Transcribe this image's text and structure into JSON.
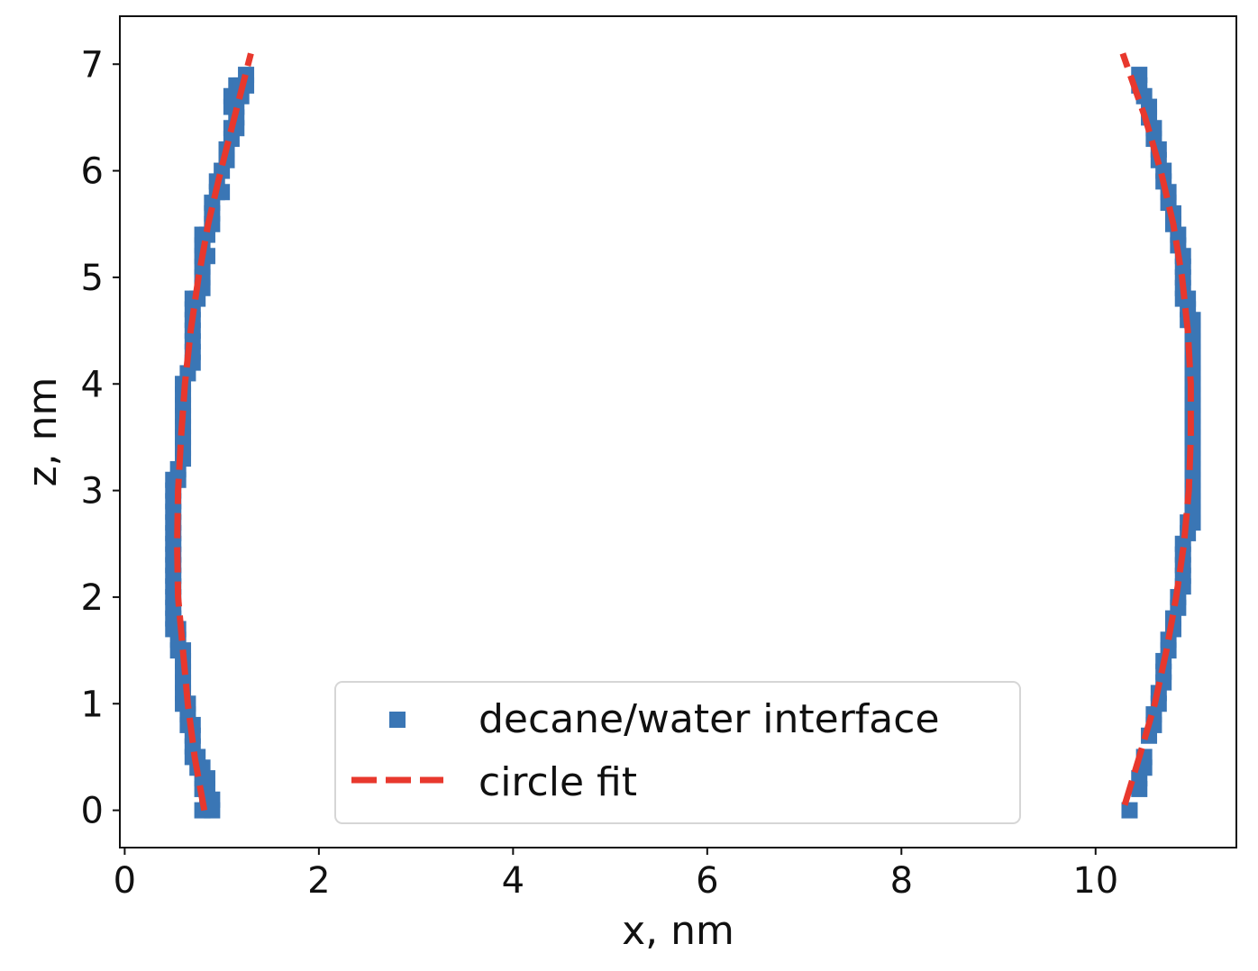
{
  "chart_data": {
    "type": "scatter",
    "title": "",
    "xlabel": "x, nm",
    "ylabel": "z, nm",
    "xlim": [
      -0.05,
      11.45
    ],
    "ylim": [
      -0.35,
      7.45
    ],
    "xticks": [
      0,
      2,
      4,
      6,
      8,
      10
    ],
    "yticks": [
      0,
      1,
      2,
      3,
      4,
      5,
      6,
      7
    ],
    "grid": false,
    "legend_position": "lower center",
    "series": [
      {
        "name": "decane/water interface",
        "type": "scatter",
        "marker": "square",
        "color": "#3a76b5",
        "points": [
          [
            0.8,
            0.0
          ],
          [
            0.9,
            0.0
          ],
          [
            0.85,
            0.1
          ],
          [
            0.9,
            0.1
          ],
          [
            0.8,
            0.2
          ],
          [
            0.85,
            0.2
          ],
          [
            0.8,
            0.3
          ],
          [
            0.85,
            0.3
          ],
          [
            0.75,
            0.4
          ],
          [
            0.8,
            0.4
          ],
          [
            0.7,
            0.5
          ],
          [
            0.75,
            0.5
          ],
          [
            0.7,
            0.6
          ],
          [
            0.7,
            0.7
          ],
          [
            0.65,
            0.8
          ],
          [
            0.7,
            0.8
          ],
          [
            0.65,
            0.9
          ],
          [
            0.6,
            1.0
          ],
          [
            0.65,
            1.0
          ],
          [
            0.6,
            1.1
          ],
          [
            0.6,
            1.2
          ],
          [
            0.6,
            1.3
          ],
          [
            0.6,
            1.4
          ],
          [
            0.55,
            1.5
          ],
          [
            0.6,
            1.5
          ],
          [
            0.55,
            1.6
          ],
          [
            0.5,
            1.7
          ],
          [
            0.55,
            1.7
          ],
          [
            0.5,
            1.8
          ],
          [
            0.5,
            1.9
          ],
          [
            0.5,
            2.0
          ],
          [
            0.5,
            2.1
          ],
          [
            0.5,
            2.2
          ],
          [
            0.5,
            2.3
          ],
          [
            0.5,
            2.4
          ],
          [
            0.5,
            2.5
          ],
          [
            0.5,
            2.6
          ],
          [
            0.5,
            2.7
          ],
          [
            0.5,
            2.8
          ],
          [
            0.5,
            2.9
          ],
          [
            0.5,
            3.0
          ],
          [
            0.5,
            3.1
          ],
          [
            0.55,
            3.1
          ],
          [
            0.55,
            3.2
          ],
          [
            0.6,
            3.3
          ],
          [
            0.6,
            3.4
          ],
          [
            0.6,
            3.5
          ],
          [
            0.6,
            3.6
          ],
          [
            0.6,
            3.7
          ],
          [
            0.6,
            3.8
          ],
          [
            0.6,
            3.9
          ],
          [
            0.6,
            4.0
          ],
          [
            0.65,
            4.1
          ],
          [
            0.7,
            4.2
          ],
          [
            0.7,
            4.3
          ],
          [
            0.7,
            4.4
          ],
          [
            0.7,
            4.5
          ],
          [
            0.7,
            4.6
          ],
          [
            0.7,
            4.7
          ],
          [
            0.7,
            4.8
          ],
          [
            0.75,
            4.8
          ],
          [
            0.8,
            4.9
          ],
          [
            0.8,
            5.0
          ],
          [
            0.8,
            5.1
          ],
          [
            0.8,
            5.2
          ],
          [
            0.85,
            5.2
          ],
          [
            0.8,
            5.3
          ],
          [
            0.8,
            5.4
          ],
          [
            0.85,
            5.4
          ],
          [
            0.9,
            5.5
          ],
          [
            0.9,
            5.6
          ],
          [
            0.9,
            5.7
          ],
          [
            0.95,
            5.8
          ],
          [
            1.0,
            5.8
          ],
          [
            0.95,
            5.9
          ],
          [
            1.0,
            6.0
          ],
          [
            1.05,
            6.1
          ],
          [
            1.05,
            6.2
          ],
          [
            1.1,
            6.3
          ],
          [
            1.1,
            6.4
          ],
          [
            1.15,
            6.4
          ],
          [
            1.15,
            6.5
          ],
          [
            1.1,
            6.6
          ],
          [
            1.15,
            6.6
          ],
          [
            1.1,
            6.7
          ],
          [
            1.2,
            6.7
          ],
          [
            1.15,
            6.8
          ],
          [
            1.2,
            6.8
          ],
          [
            1.25,
            6.8
          ],
          [
            1.25,
            6.9
          ],
          [
            10.35,
            0.0
          ],
          [
            10.45,
            0.2
          ],
          [
            10.45,
            0.3
          ],
          [
            10.5,
            0.4
          ],
          [
            10.5,
            0.5
          ],
          [
            10.55,
            0.7
          ],
          [
            10.6,
            0.8
          ],
          [
            10.6,
            0.9
          ],
          [
            10.65,
            1.0
          ],
          [
            10.65,
            1.1
          ],
          [
            10.7,
            1.2
          ],
          [
            10.7,
            1.3
          ],
          [
            10.7,
            1.4
          ],
          [
            10.75,
            1.5
          ],
          [
            10.75,
            1.6
          ],
          [
            10.8,
            1.7
          ],
          [
            10.8,
            1.8
          ],
          [
            10.85,
            1.9
          ],
          [
            10.85,
            2.0
          ],
          [
            10.9,
            2.1
          ],
          [
            10.9,
            2.2
          ],
          [
            10.9,
            2.3
          ],
          [
            10.9,
            2.4
          ],
          [
            10.9,
            2.5
          ],
          [
            10.95,
            2.6
          ],
          [
            10.95,
            2.7
          ],
          [
            11.0,
            2.7
          ],
          [
            11.0,
            2.8
          ],
          [
            11.0,
            2.9
          ],
          [
            11.0,
            3.0
          ],
          [
            11.0,
            3.1
          ],
          [
            11.0,
            3.2
          ],
          [
            11.0,
            3.3
          ],
          [
            11.0,
            3.4
          ],
          [
            11.0,
            3.5
          ],
          [
            11.0,
            3.6
          ],
          [
            11.0,
            3.7
          ],
          [
            11.0,
            3.8
          ],
          [
            11.0,
            3.9
          ],
          [
            11.0,
            4.0
          ],
          [
            11.0,
            4.1
          ],
          [
            11.0,
            4.2
          ],
          [
            11.0,
            4.3
          ],
          [
            11.0,
            4.4
          ],
          [
            11.0,
            4.5
          ],
          [
            11.0,
            4.6
          ],
          [
            10.95,
            4.6
          ],
          [
            10.95,
            4.7
          ],
          [
            10.9,
            4.8
          ],
          [
            10.95,
            4.8
          ],
          [
            10.9,
            4.9
          ],
          [
            10.9,
            5.0
          ],
          [
            10.9,
            5.1
          ],
          [
            10.9,
            5.2
          ],
          [
            10.85,
            5.3
          ],
          [
            10.85,
            5.4
          ],
          [
            10.8,
            5.5
          ],
          [
            10.8,
            5.6
          ],
          [
            10.75,
            5.7
          ],
          [
            10.75,
            5.8
          ],
          [
            10.7,
            5.9
          ],
          [
            10.7,
            6.0
          ],
          [
            10.65,
            6.1
          ],
          [
            10.65,
            6.2
          ],
          [
            10.6,
            6.3
          ],
          [
            10.6,
            6.4
          ],
          [
            10.55,
            6.5
          ],
          [
            10.55,
            6.6
          ],
          [
            10.5,
            6.7
          ],
          [
            10.45,
            6.8
          ],
          [
            10.45,
            6.9
          ]
        ]
      },
      {
        "name": "circle fit",
        "type": "line",
        "style": "dashed",
        "color": "#e8382d",
        "segments": [
          [
            [
              0.82,
              0.0
            ],
            [
              0.72,
              0.5
            ],
            [
              0.65,
              1.0
            ],
            [
              0.6,
              1.5
            ],
            [
              0.55,
              2.0
            ],
            [
              0.54,
              2.5
            ],
            [
              0.55,
              3.0
            ],
            [
              0.58,
              3.5
            ],
            [
              0.62,
              4.0
            ],
            [
              0.68,
              4.5
            ],
            [
              0.76,
              5.0
            ],
            [
              0.86,
              5.5
            ],
            [
              0.99,
              6.0
            ],
            [
              1.13,
              6.5
            ],
            [
              1.3,
              7.1
            ]
          ],
          [
            [
              10.3,
              0.05
            ],
            [
              10.45,
              0.5
            ],
            [
              10.61,
              1.0
            ],
            [
              10.73,
              1.5
            ],
            [
              10.83,
              2.0
            ],
            [
              10.91,
              2.5
            ],
            [
              10.96,
              3.0
            ],
            [
              10.98,
              3.5
            ],
            [
              10.98,
              4.0
            ],
            [
              10.95,
              4.5
            ],
            [
              10.89,
              5.0
            ],
            [
              10.8,
              5.5
            ],
            [
              10.67,
              6.0
            ],
            [
              10.51,
              6.5
            ],
            [
              10.28,
              7.1
            ]
          ]
        ]
      }
    ]
  }
}
